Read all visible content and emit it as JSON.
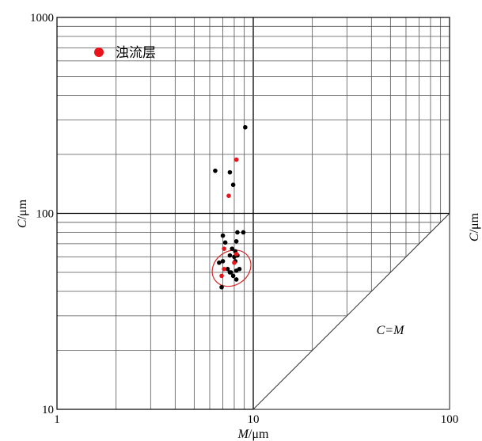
{
  "chart_data": {
    "type": "scatter",
    "xscale": "log",
    "yscale": "log",
    "xlim": [
      1,
      100
    ],
    "ylim": [
      10,
      1000
    ],
    "grid": true,
    "xlabel": {
      "var": "M",
      "unit": "/μm"
    },
    "ylabel": {
      "var": "C",
      "unit": "/μm"
    },
    "ylabel_right": {
      "var": "C",
      "unit": "/μm"
    },
    "x_ticks": [
      {
        "value": 1,
        "label": "1"
      },
      {
        "value": 10,
        "label": "10"
      },
      {
        "value": 100,
        "label": "100"
      }
    ],
    "y_ticks": [
      {
        "value": 10,
        "label": "10"
      },
      {
        "value": 100,
        "label": "100"
      },
      {
        "value": 1000,
        "label": "1000"
      }
    ],
    "legend": {
      "position": "top-left",
      "entries": [
        {
          "label": "浊流层",
          "color": "#e8141c"
        }
      ]
    },
    "annotation": "C=M",
    "colors": {
      "black": "#000000",
      "red": "#e8141c",
      "grid": "#555555",
      "ellipse": "#d62828"
    },
    "series": [
      {
        "name": "black",
        "color": "#000000",
        "points": [
          [
            9.1,
            275
          ],
          [
            6.4,
            165
          ],
          [
            7.6,
            162
          ],
          [
            7.9,
            140
          ],
          [
            7.0,
            77
          ],
          [
            8.3,
            80
          ],
          [
            8.9,
            80
          ],
          [
            7.2,
            71
          ],
          [
            8.2,
            72
          ],
          [
            7.8,
            66
          ],
          [
            8.1,
            64
          ],
          [
            8.0,
            60
          ],
          [
            7.6,
            61
          ],
          [
            8.3,
            61
          ],
          [
            7.0,
            57
          ],
          [
            6.7,
            56
          ],
          [
            8.1,
            57
          ],
          [
            7.4,
            52
          ],
          [
            7.6,
            50
          ],
          [
            7.7,
            50
          ],
          [
            8.2,
            51
          ],
          [
            8.5,
            52
          ],
          [
            7.9,
            48
          ],
          [
            8.2,
            46
          ],
          [
            6.9,
            42
          ]
        ]
      },
      {
        "name": "red",
        "color": "#e8141c",
        "points": [
          [
            8.2,
            188
          ],
          [
            7.5,
            123
          ],
          [
            7.1,
            66
          ],
          [
            8.2,
            62
          ],
          [
            8.0,
            56
          ],
          [
            7.1,
            52
          ],
          [
            6.9,
            48
          ]
        ]
      }
    ],
    "ellipse": {
      "cx": 7.75,
      "cy": 52.5,
      "rx_factor": 1.27,
      "ry_factor": 1.22,
      "rotation_deg": -35
    }
  }
}
